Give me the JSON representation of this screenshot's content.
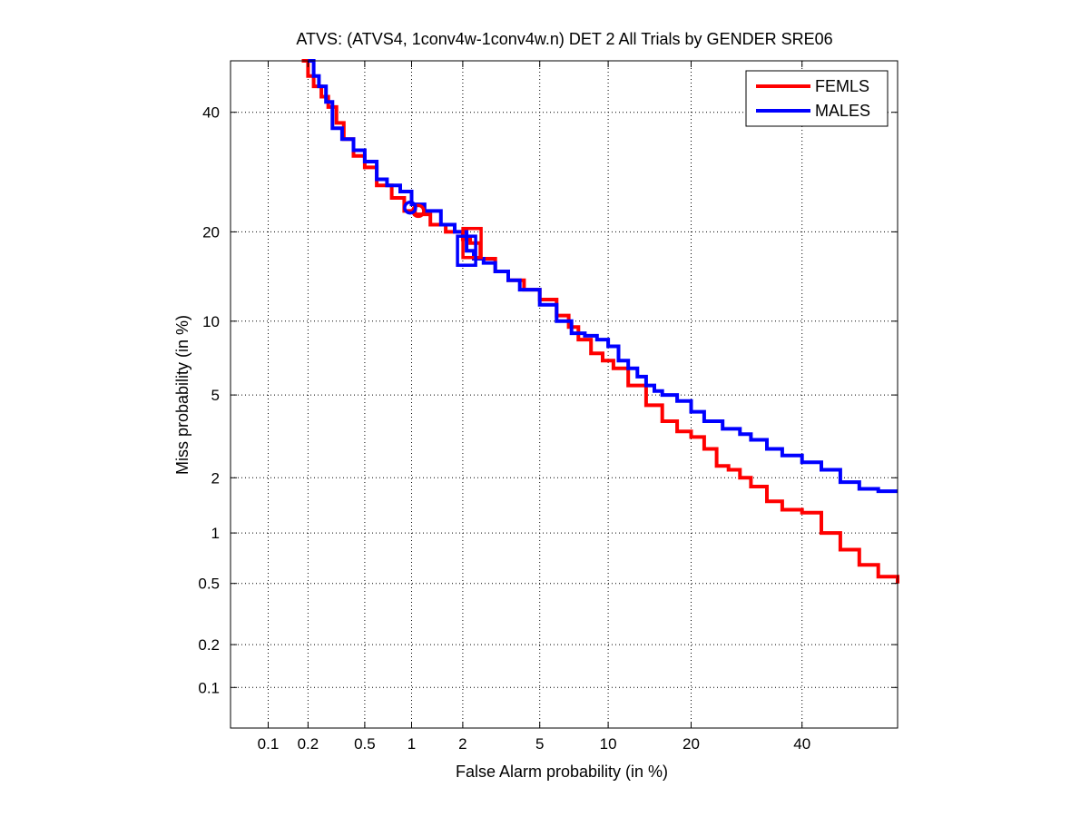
{
  "chart_data": {
    "type": "line",
    "title": "ATVS: (ATVS4, 1conv4w-1conv4w.n) DET 2 All Trials by GENDER SRE06",
    "xlabel": "False Alarm probability (in %)",
    "ylabel": "Miss probability (in %)",
    "x_scale": "probit",
    "y_scale": "probit",
    "xlim": [
      0.05,
      60
    ],
    "ylim": [
      0.05,
      50
    ],
    "x_ticks": [
      0.1,
      0.2,
      0.5,
      1,
      2,
      5,
      10,
      20,
      40
    ],
    "x_tick_labels": [
      "0.1",
      "0.2",
      "0.5",
      "1",
      "2",
      "5",
      "10",
      "20",
      "40"
    ],
    "y_ticks": [
      0.1,
      0.2,
      0.5,
      1,
      2,
      5,
      10,
      20,
      40
    ],
    "y_tick_labels": [
      "0.1",
      "0.2",
      "0.5",
      "1",
      "2",
      "5",
      "10",
      "20",
      "40"
    ],
    "grid": true,
    "legend_position": "top-right",
    "series": [
      {
        "name": "FEMLS",
        "color": "#ff0000",
        "x": [
          0.18,
          0.2,
          0.22,
          0.25,
          0.28,
          0.32,
          0.36,
          0.42,
          0.5,
          0.6,
          0.75,
          0.9,
          1.05,
          1.3,
          1.6,
          2.0,
          2.2,
          2.5,
          3.0,
          3.5,
          4.2,
          5.0,
          6.0,
          6.8,
          7.5,
          8.5,
          9.5,
          10.5,
          12,
          14,
          16,
          18,
          20,
          22,
          24,
          26,
          28,
          30,
          33,
          36,
          40,
          44,
          48,
          52,
          56,
          60
        ],
        "y": [
          50,
          47,
          45,
          43,
          41,
          38,
          35,
          32,
          30,
          27,
          25,
          23,
          22.5,
          21,
          20,
          19,
          18.5,
          16.5,
          15,
          14,
          13,
          12,
          10.5,
          9.5,
          8.5,
          7.5,
          7,
          6.5,
          5.5,
          4.5,
          3.8,
          3.4,
          3.2,
          2.8,
          2.3,
          2.2,
          2.0,
          1.8,
          1.5,
          1.35,
          1.3,
          1.0,
          0.8,
          0.65,
          0.55,
          0.5
        ]
      },
      {
        "name": "MALES",
        "color": "#0000ff",
        "x": [
          0.2,
          0.22,
          0.24,
          0.27,
          0.3,
          0.35,
          0.42,
          0.5,
          0.6,
          0.7,
          0.85,
          1.0,
          1.2,
          1.5,
          1.8,
          2.1,
          2.3,
          2.6,
          3.0,
          3.5,
          4.0,
          5.0,
          6.0,
          7.0,
          8.0,
          9.0,
          10,
          11,
          12,
          13,
          14,
          15,
          16,
          18,
          20,
          22,
          25,
          28,
          30,
          33,
          36,
          40,
          44,
          48,
          52,
          56,
          60
        ],
        "y": [
          50,
          47,
          45,
          42,
          37,
          35,
          33,
          31,
          28,
          27,
          26,
          24,
          23,
          21,
          20,
          17.5,
          16.5,
          16,
          15,
          14,
          13,
          11.5,
          10,
          9,
          8.8,
          8.5,
          8,
          7,
          6.5,
          6,
          5.5,
          5.2,
          5,
          4.7,
          4.2,
          3.8,
          3.5,
          3.3,
          3.1,
          2.8,
          2.6,
          2.4,
          2.2,
          1.9,
          1.75,
          1.7,
          1.7
        ]
      }
    ],
    "markers": [
      {
        "series": "FEMLS",
        "shape": "circle",
        "x": 1.1,
        "y": 23
      },
      {
        "series": "FEMLS",
        "shape": "square",
        "x": 2.25,
        "y": 18.5
      },
      {
        "series": "MALES",
        "shape": "circle",
        "x": 0.98,
        "y": 23.5
      },
      {
        "series": "MALES",
        "shape": "square",
        "x": 2.1,
        "y": 17.5
      }
    ]
  }
}
